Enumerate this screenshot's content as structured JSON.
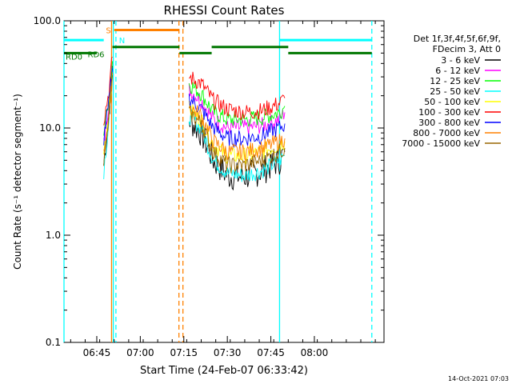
{
  "chart_data": {
    "type": "line",
    "title": "RHESSI Count Rates",
    "xlabel": "Start Time (24-Feb-07 06:33:42)",
    "ylabel": "Count Rate (s⁻¹ detector segment⁻¹)",
    "y_scale": "log",
    "ylim": [
      0.1,
      100
    ],
    "x_range_hours": [
      6.5617,
      8.4
    ],
    "x_ticks": [
      {
        "label": "06:45",
        "hour": 6.75
      },
      {
        "label": "07:00",
        "hour": 7.0
      },
      {
        "label": "07:15",
        "hour": 7.25
      },
      {
        "label": "07:30",
        "hour": 7.5
      },
      {
        "label": "07:45",
        "hour": 7.75
      },
      {
        "label": "08:00",
        "hour": 8.0
      }
    ],
    "y_ticks": [
      {
        "label": "100.0",
        "value": 100
      },
      {
        "label": "10.0",
        "value": 10
      },
      {
        "label": "1.0",
        "value": 1
      },
      {
        "label": "0.1",
        "value": 0.1
      }
    ],
    "legend_header": [
      "Det 1f,3f,4f,5f,6f,9f,",
      "FDecim 3, Att 0"
    ],
    "legend_placement": "right",
    "series": [
      {
        "name": "3 - 6 keV",
        "color": "#000000",
        "values": [
          [
            6.79,
            4.5
          ],
          [
            6.82,
            14
          ],
          [
            6.84,
            38
          ],
          [
            7.28,
            12
          ],
          [
            7.35,
            9
          ],
          [
            7.42,
            5
          ],
          [
            7.5,
            3.6
          ],
          [
            7.6,
            3.5
          ],
          [
            7.7,
            4
          ],
          [
            7.8,
            5
          ],
          [
            7.83,
            6
          ]
        ]
      },
      {
        "name": "6 - 12 keV",
        "color": "#ff00ff",
        "values": [
          [
            6.79,
            7
          ],
          [
            6.82,
            18
          ],
          [
            6.84,
            40
          ],
          [
            7.28,
            23
          ],
          [
            7.35,
            18
          ],
          [
            7.42,
            12
          ],
          [
            7.5,
            10
          ],
          [
            7.6,
            10
          ],
          [
            7.7,
            10.5
          ],
          [
            7.8,
            12
          ],
          [
            7.83,
            14
          ]
        ]
      },
      {
        "name": "12 - 25 keV",
        "color": "#00ff00",
        "values": [
          [
            6.79,
            9
          ],
          [
            6.82,
            20
          ],
          [
            6.84,
            42
          ],
          [
            7.28,
            26
          ],
          [
            7.35,
            21
          ],
          [
            7.42,
            14
          ],
          [
            7.5,
            12
          ],
          [
            7.6,
            12
          ],
          [
            7.7,
            12.5
          ],
          [
            7.8,
            14
          ],
          [
            7.83,
            16
          ]
        ]
      },
      {
        "name": "25 - 50 keV",
        "color": "#00ffff",
        "values": [
          [
            6.79,
            4
          ],
          [
            6.82,
            12
          ],
          [
            6.84,
            30
          ],
          [
            7.28,
            13
          ],
          [
            7.35,
            10
          ],
          [
            7.42,
            5
          ],
          [
            7.5,
            3.8
          ],
          [
            7.6,
            3.6
          ],
          [
            7.7,
            4
          ],
          [
            7.8,
            5
          ],
          [
            7.83,
            5.5
          ]
        ]
      },
      {
        "name": "50 - 100 keV",
        "color": "#ffff00",
        "values": [
          [
            6.79,
            6
          ],
          [
            6.82,
            14
          ],
          [
            6.84,
            32
          ],
          [
            7.28,
            15
          ],
          [
            7.35,
            12
          ],
          [
            7.42,
            7
          ],
          [
            7.5,
            5.5
          ],
          [
            7.6,
            5.5
          ],
          [
            7.7,
            6
          ],
          [
            7.8,
            7
          ],
          [
            7.83,
            7.5
          ]
        ]
      },
      {
        "name": "100 - 300 keV",
        "color": "#ff0000",
        "values": [
          [
            6.79,
            12
          ],
          [
            6.82,
            22
          ],
          [
            6.84,
            46
          ],
          [
            7.28,
            30
          ],
          [
            7.35,
            26
          ],
          [
            7.42,
            18
          ],
          [
            7.5,
            15
          ],
          [
            7.6,
            14
          ],
          [
            7.7,
            14.5
          ],
          [
            7.8,
            17
          ],
          [
            7.83,
            19
          ]
        ]
      },
      {
        "name": "300 - 800 keV",
        "color": "#0000ff",
        "values": [
          [
            6.79,
            8
          ],
          [
            6.82,
            17
          ],
          [
            6.84,
            36
          ],
          [
            7.28,
            19
          ],
          [
            7.35,
            15
          ],
          [
            7.42,
            10
          ],
          [
            7.5,
            8
          ],
          [
            7.6,
            8
          ],
          [
            7.7,
            8.5
          ],
          [
            7.8,
            10
          ],
          [
            7.83,
            11
          ]
        ]
      },
      {
        "name": "800 - 7000 keV",
        "color": "#ff8000",
        "values": [
          [
            6.79,
            5.5
          ],
          [
            6.82,
            13
          ],
          [
            6.84,
            33
          ],
          [
            7.28,
            16
          ],
          [
            7.35,
            13
          ],
          [
            7.42,
            7.5
          ],
          [
            7.5,
            6
          ],
          [
            7.6,
            6
          ],
          [
            7.7,
            6.5
          ],
          [
            7.8,
            7.5
          ],
          [
            7.83,
            8
          ]
        ]
      },
      {
        "name": "7000 - 15000 keV",
        "color": "#996600",
        "values": [
          [
            6.79,
            5
          ],
          [
            6.82,
            12
          ],
          [
            6.84,
            31
          ],
          [
            7.28,
            14
          ],
          [
            7.35,
            11
          ],
          [
            7.42,
            6
          ],
          [
            7.5,
            4.5
          ],
          [
            7.6,
            4.5
          ],
          [
            7.7,
            5
          ],
          [
            7.8,
            6
          ],
          [
            7.83,
            6.5
          ]
        ]
      }
    ],
    "state_bars": [
      {
        "label": "S",
        "color": "#ff8000",
        "value": 82,
        "start": 6.85,
        "end": 7.225
      },
      {
        "label": "N",
        "color": "#00ffff",
        "value": 66,
        "start": 6.85,
        "end": 6.85
      },
      {
        "label": "",
        "color": "#00ffff",
        "value": 66,
        "start": 6.5617,
        "end": 6.79
      },
      {
        "label": "",
        "color": "#00ffff",
        "value": 66,
        "start": 7.8,
        "end": 8.33
      },
      {
        "label": "RD0",
        "color": "#007700",
        "value": 50,
        "start": 6.5617,
        "end": 6.75
      },
      {
        "label": "RD6",
        "color": "#007700",
        "value": 57,
        "start": 6.84,
        "end": 7.225
      },
      {
        "label": "",
        "color": "#007700",
        "value": 50,
        "start": 7.225,
        "end": 7.41
      },
      {
        "label": "",
        "color": "#007700",
        "value": 57,
        "start": 7.41,
        "end": 7.85
      },
      {
        "label": "",
        "color": "#007700",
        "value": 50,
        "start": 7.85,
        "end": 8.33
      }
    ],
    "vertical_lines": [
      {
        "hour": 6.5617,
        "color": "#00ffff",
        "style": "solid"
      },
      {
        "hour": 6.835,
        "color": "#ff8000",
        "style": "solid"
      },
      {
        "hour": 6.845,
        "color": "#00ffff",
        "style": "solid"
      },
      {
        "hour": 6.86,
        "color": "#00ffff",
        "style": "dashed"
      },
      {
        "hour": 7.222,
        "color": "#ff8000",
        "style": "dashed"
      },
      {
        "hour": 7.245,
        "color": "#ff8000",
        "style": "dashed"
      },
      {
        "hour": 7.8,
        "color": "#00ffff",
        "style": "solid"
      },
      {
        "hour": 8.33,
        "color": "#00ffff",
        "style": "dashed"
      }
    ],
    "footer_date": "14-Oct-2021 07:03",
    "grid": false
  }
}
